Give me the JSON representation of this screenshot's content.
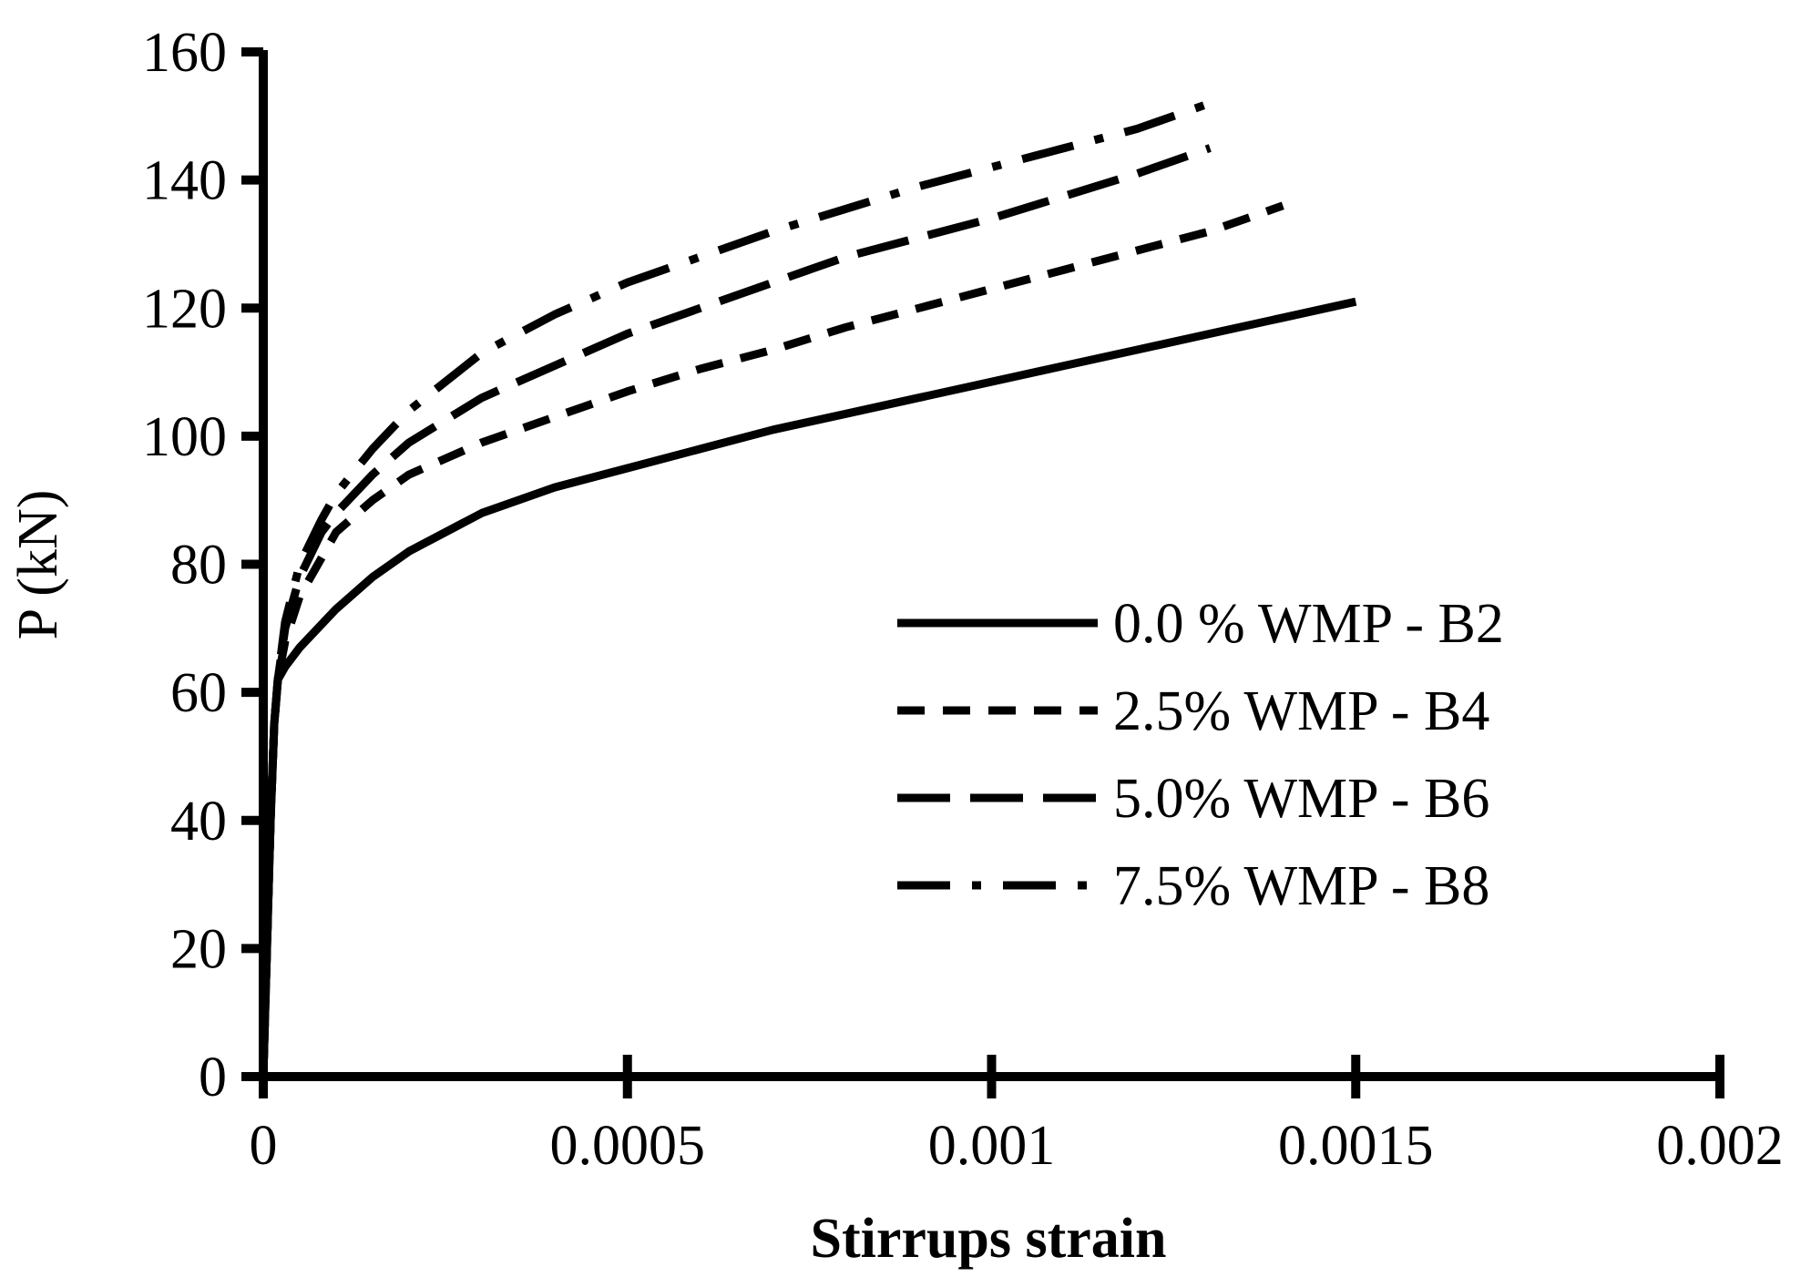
{
  "chart_data": {
    "type": "line",
    "title": "",
    "xlabel": "Stirrups strain",
    "ylabel": "P (kN)",
    "xlim": [
      0,
      0.002
    ],
    "ylim": [
      0,
      160
    ],
    "x_ticks": [
      0,
      0.0005,
      0.001,
      0.0015,
      0.002
    ],
    "x_tick_labels": [
      "0",
      "0.0005",
      "0.001",
      "0.0015",
      "0.002"
    ],
    "y_ticks": [
      0,
      20,
      40,
      60,
      80,
      100,
      120,
      140,
      160
    ],
    "y_tick_labels": [
      "0",
      "20",
      "40",
      "60",
      "80",
      "100",
      "120",
      "140",
      "160"
    ],
    "grid": false,
    "legend_position": "right",
    "color": "#000000",
    "series": [
      {
        "name": "0.0 % WMP - B2",
        "style": "solid",
        "x": [
          0,
          5e-06,
          1e-05,
          1.5e-05,
          2e-05,
          3e-05,
          5e-05,
          0.0001,
          0.00015,
          0.0002,
          0.0003,
          0.0004,
          0.0005,
          0.0006,
          0.0007,
          0.0008,
          0.0009,
          0.001,
          0.0011,
          0.0012,
          0.0013,
          0.0014,
          0.0015
        ],
        "y": [
          0,
          20,
          40,
          55,
          62,
          64,
          67,
          73,
          78,
          82,
          88,
          92,
          95,
          98,
          101,
          103.5,
          106,
          108.5,
          111,
          113.5,
          116,
          118.5,
          121
        ]
      },
      {
        "name": "2.5% WMP - B4",
        "style": "short-dash",
        "x": [
          0,
          5e-06,
          1e-05,
          1.5e-05,
          2e-05,
          3e-05,
          5e-05,
          8e-05,
          0.0001,
          0.00015,
          0.0002,
          0.0003,
          0.0004,
          0.0005,
          0.0006,
          0.0007,
          0.0008,
          0.0009,
          0.001,
          0.0011,
          0.0012,
          0.0013,
          0.0014
        ],
        "y": [
          0,
          20,
          40,
          55,
          62,
          68,
          75,
          81,
          85,
          90,
          94,
          99,
          103,
          107,
          110.5,
          113.5,
          117,
          120,
          123,
          126,
          129,
          132,
          136
        ]
      },
      {
        "name": "5.0% WMP - B6",
        "style": "long-dash",
        "x": [
          0,
          5e-06,
          1e-05,
          1.5e-05,
          2e-05,
          3e-05,
          5e-05,
          8e-05,
          0.0001,
          0.00015,
          0.0002,
          0.0003,
          0.0004,
          0.0005,
          0.0006,
          0.0007,
          0.0008,
          0.0009,
          0.001,
          0.0011,
          0.0012,
          0.0013
        ],
        "y": [
          0,
          20,
          40,
          55,
          62,
          70,
          78,
          85,
          88,
          94,
          99,
          106,
          111,
          116,
          120,
          124,
          128,
          131,
          134,
          137.5,
          141,
          145
        ]
      },
      {
        "name": "7.5% WMP - B8",
        "style": "dash-dot",
        "x": [
          0,
          5e-06,
          1e-05,
          1.5e-05,
          2e-05,
          3e-05,
          5e-05,
          8e-05,
          0.0001,
          0.00015,
          0.0002,
          0.0003,
          0.0004,
          0.0005,
          0.0006,
          0.0007,
          0.0008,
          0.0009,
          0.001,
          0.0011,
          0.0012,
          0.0013
        ],
        "y": [
          0,
          20,
          40,
          55,
          62,
          71,
          80,
          87,
          91,
          98,
          104,
          113,
          119,
          124,
          128,
          132,
          135.5,
          139,
          142,
          145,
          148,
          152
        ]
      }
    ]
  }
}
